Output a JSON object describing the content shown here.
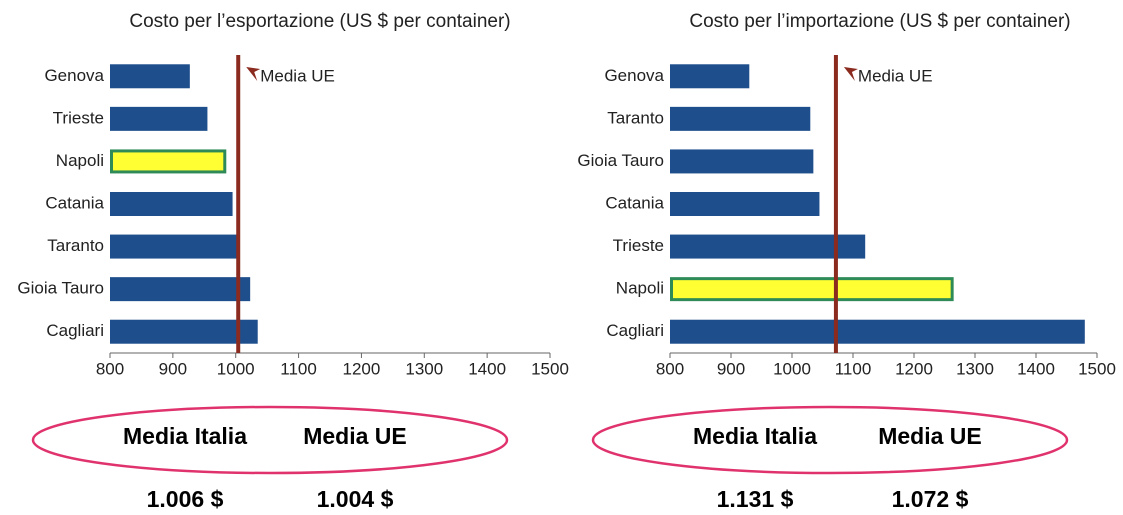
{
  "chart_data": [
    {
      "type": "bar",
      "orientation": "horizontal",
      "title": "Costo per l’esportazione (US $ per container)",
      "categories": [
        "Genova",
        "Trieste",
        "Napoli",
        "Catania",
        "Taranto",
        "Gioia Tauro",
        "Cagliari"
      ],
      "values": [
        927,
        955,
        985,
        995,
        1005,
        1023,
        1035
      ],
      "colors": [
        "#1f4e8c",
        "#1f4e8c",
        "#ffff33",
        "#1f4e8c",
        "#1f4e8c",
        "#1f4e8c",
        "#1f4e8c"
      ],
      "xlim": [
        800,
        1500
      ],
      "xticks": [
        800,
        900,
        1000,
        1100,
        1200,
        1300,
        1400,
        1500
      ],
      "reference_line": {
        "label": "Media UE",
        "value": 1004,
        "color": "#8b2a1e"
      },
      "summary": {
        "names": [
          "Media Italia",
          "Media UE"
        ],
        "values": [
          1006,
          1004
        ],
        "value_labels": [
          "1.006 $",
          "1.004 $"
        ]
      }
    },
    {
      "type": "bar",
      "orientation": "horizontal",
      "title": "Costo per l’importazione (US $ per container)",
      "categories": [
        "Genova",
        "Taranto",
        "Gioia Tauro",
        "Catania",
        "Trieste",
        "Napoli",
        "Cagliari"
      ],
      "values": [
        930,
        1030,
        1035,
        1045,
        1120,
        1265,
        1480
      ],
      "colors": [
        "#1f4e8c",
        "#1f4e8c",
        "#1f4e8c",
        "#1f4e8c",
        "#1f4e8c",
        "#ffff33",
        "#1f4e8c"
      ],
      "xlim": [
        800,
        1500
      ],
      "xticks": [
        800,
        900,
        1000,
        1100,
        1200,
        1300,
        1400,
        1500
      ],
      "reference_line": {
        "label": "Media UE",
        "value": 1072,
        "color": "#8b2a1e"
      },
      "summary": {
        "names": [
          "Media Italia",
          "Media UE"
        ],
        "values": [
          1131,
          1072
        ],
        "value_labels": [
          "1.131 $",
          "1.072 $"
        ]
      }
    }
  ]
}
